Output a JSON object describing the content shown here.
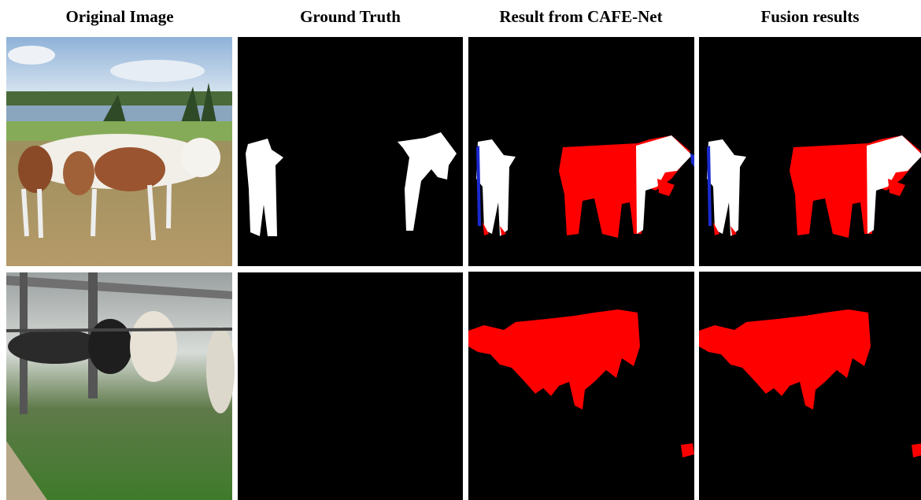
{
  "header": {
    "columns": [
      "Original Image",
      "Ground Truth",
      "Result from CAFE-Net",
      "Fusion results"
    ]
  }
}
